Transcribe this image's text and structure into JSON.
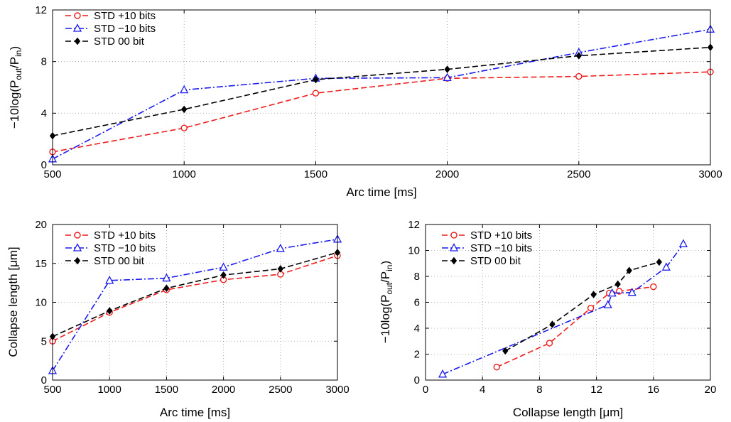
{
  "chart_data": [
    {
      "type": "line",
      "xlabel": "Arc time [ms]",
      "ylabel_parts": [
        "−10log(P",
        "out",
        "/P",
        "in",
        ")"
      ],
      "xlim": [
        500,
        3000
      ],
      "ylim": [
        0,
        12
      ],
      "xticks": [
        "500",
        "1000",
        "1500",
        "2000",
        "2500",
        "3000"
      ],
      "yticks": [
        "0",
        "4",
        "8",
        "12"
      ],
      "grid": true,
      "legend_position": "top-left",
      "series": [
        {
          "name": "STD +10 bits",
          "color": "#ee1c1c",
          "marker": "circle",
          "dash": "dashed",
          "x": [
            500,
            1000,
            1500,
            2000,
            2500,
            3000
          ],
          "y": [
            1.0,
            2.85,
            5.55,
            6.7,
            6.85,
            7.2
          ]
        },
        {
          "name": "STD −10 bits",
          "color": "#1a1aee",
          "marker": "triangle",
          "dash": "dashdot",
          "x": [
            500,
            1000,
            1500,
            2000,
            2500,
            3000
          ],
          "y": [
            0.45,
            5.8,
            6.7,
            6.75,
            8.7,
            10.5
          ]
        },
        {
          "name": "STD 00 bit",
          "color": "#000000",
          "marker": "diamond",
          "dash": "dashed",
          "x": [
            500,
            1000,
            1500,
            2000,
            2500,
            3000
          ],
          "y": [
            2.25,
            4.3,
            6.6,
            7.4,
            8.45,
            9.1
          ]
        }
      ]
    },
    {
      "type": "line",
      "xlabel": "Arc time [ms]",
      "ylabel_parts": [
        "Collapse length [μm]"
      ],
      "xlim": [
        500,
        3000
      ],
      "ylim": [
        0,
        20
      ],
      "xticks": [
        "500",
        "1000",
        "1500",
        "2000",
        "2500",
        "3000"
      ],
      "yticks": [
        "0",
        "5",
        "10",
        "15",
        "20"
      ],
      "grid": true,
      "legend_position": "top-left",
      "series": [
        {
          "name": "STD +10 bits",
          "color": "#ee1c1c",
          "marker": "circle",
          "dash": "dashed",
          "x": [
            500,
            1000,
            1500,
            2000,
            2500,
            3000
          ],
          "y": [
            5.0,
            8.7,
            11.6,
            12.9,
            13.6,
            16.0
          ]
        },
        {
          "name": "STD −10 bits",
          "color": "#1a1aee",
          "marker": "triangle",
          "dash": "dashdot",
          "x": [
            500,
            1000,
            1500,
            2000,
            2500,
            3000
          ],
          "y": [
            1.2,
            12.8,
            13.1,
            14.5,
            16.9,
            18.1
          ]
        },
        {
          "name": "STD 00 bit",
          "color": "#000000",
          "marker": "diamond",
          "dash": "dashed",
          "x": [
            500,
            1000,
            1500,
            2000,
            2500,
            3000
          ],
          "y": [
            5.6,
            8.9,
            11.8,
            13.5,
            14.3,
            16.4
          ]
        }
      ]
    },
    {
      "type": "line",
      "xlabel": "Collapse length [μm]",
      "ylabel_parts": [
        "−10log(P",
        "out",
        "/P",
        "in",
        ")"
      ],
      "xlim": [
        0,
        20
      ],
      "ylim": [
        0,
        12
      ],
      "xticks": [
        "0",
        "4",
        "8",
        "12",
        "16",
        "20"
      ],
      "yticks": [
        "0",
        "2",
        "4",
        "6",
        "8",
        "10",
        "12"
      ],
      "grid": true,
      "legend_position": "top-left",
      "series": [
        {
          "name": "STD +10 bits",
          "color": "#ee1c1c",
          "marker": "circle",
          "dash": "dashed",
          "x": [
            5.0,
            8.7,
            11.6,
            12.9,
            13.6,
            16.0
          ],
          "y": [
            1.0,
            2.85,
            5.55,
            6.7,
            6.85,
            7.2
          ]
        },
        {
          "name": "STD −10 bits",
          "color": "#1a1aee",
          "marker": "triangle",
          "dash": "dashdot",
          "x": [
            1.2,
            12.8,
            13.1,
            14.5,
            16.9,
            18.1
          ],
          "y": [
            0.45,
            5.8,
            6.7,
            6.75,
            8.7,
            10.5
          ]
        },
        {
          "name": "STD 00 bit",
          "color": "#000000",
          "marker": "diamond",
          "dash": "dashed",
          "x": [
            5.6,
            8.9,
            11.8,
            13.5,
            14.3,
            16.4
          ],
          "y": [
            2.25,
            4.3,
            6.6,
            7.4,
            8.45,
            9.1
          ]
        }
      ]
    }
  ]
}
